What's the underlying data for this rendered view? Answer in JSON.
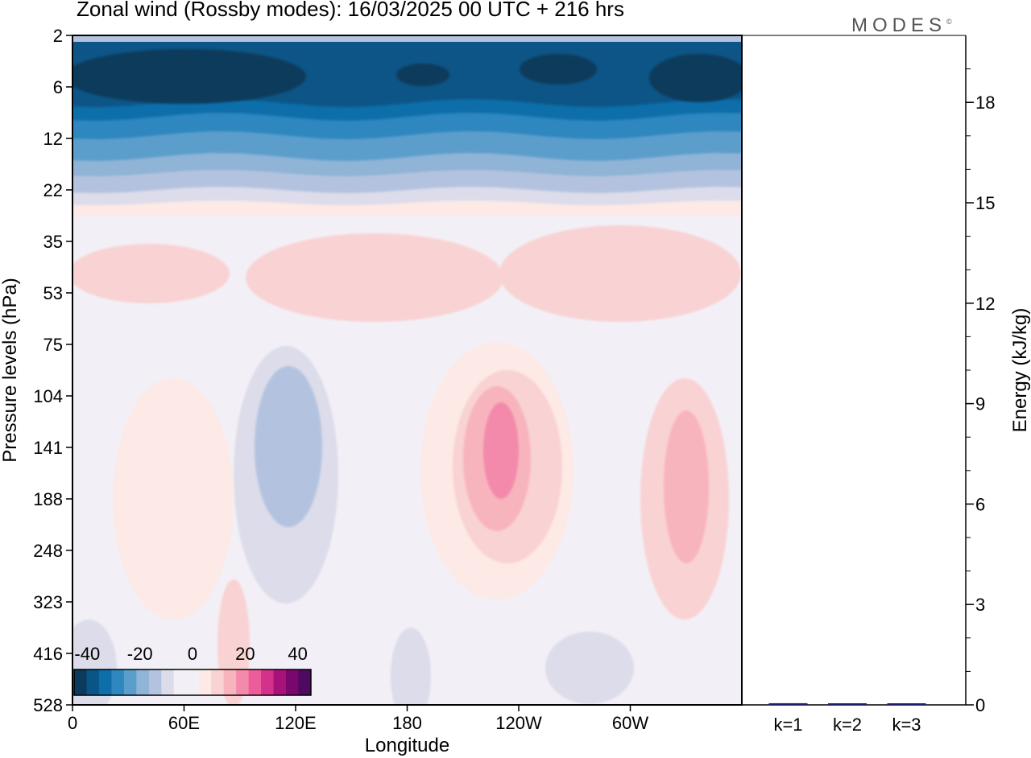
{
  "title": "Zonal wind (Rossby modes):  16/03/2025  00 UTC  + 216 hrs",
  "brand": "MODES",
  "brand_mark": "©",
  "colors": {
    "blues": [
      "#0b3a5c",
      "#0a5486",
      "#0e6eaa",
      "#2e87bf",
      "#5b9ecb",
      "#8fb4d6",
      "#b3c3df",
      "#dcdcea"
    ],
    "near_zero": "#f2f0f6",
    "reds": [
      "#fde9e5",
      "#f9d2d3",
      "#f8b4bd",
      "#f38aab",
      "#ec5d9a",
      "#d3318b",
      "#a8107a",
      "#7a076c",
      "#4d0a5e"
    ]
  },
  "chart_data": [
    {
      "type": "heatmap",
      "title": "Zonal wind (Rossby modes):  16/03/2025  00 UTC  + 216 hrs",
      "xlabel": "Longitude",
      "ylabel": "Pressure levels (hPa)",
      "x_ticks": [
        "0",
        "60E",
        "120E",
        "180",
        "120W",
        "60W"
      ],
      "x_tick_degrees": [
        0,
        60,
        120,
        180,
        240,
        300
      ],
      "xlim": [
        0,
        360
      ],
      "y_ticks": [
        "2",
        "6",
        "12",
        "22",
        "35",
        "53",
        "75",
        "104",
        "141",
        "188",
        "248",
        "323",
        "416",
        "528"
      ],
      "y_scale": "model levels, top 2 hPa to bottom 528 hPa",
      "colorbar": {
        "tick_labels": [
          "-40",
          "-20",
          "0",
          "20",
          "40"
        ],
        "tick_values": [
          -40,
          -20,
          0,
          20,
          40
        ],
        "range": [
          -45,
          45
        ],
        "step": 5
      },
      "grid": false,
      "regions": [
        {
          "level_range": [
            "2",
            "12"
          ],
          "lon_range": [
            0,
            360
          ],
          "value": "-40 to -20"
        },
        {
          "level_range": [
            "12",
            "22"
          ],
          "lon_range": [
            0,
            360
          ],
          "value": "-20 to -5"
        },
        {
          "level_range": [
            "35",
            "75"
          ],
          "lon_range": [
            0,
            360
          ],
          "value": "5 to 10"
        },
        {
          "level_range": [
            "104",
            "323"
          ],
          "lon_range": [
            95,
            135
          ],
          "value": "-10 to -5"
        },
        {
          "level_range": [
            "104",
            "248"
          ],
          "lon_range": [
            200,
            265
          ],
          "value": "10 to 20"
        },
        {
          "level_range": [
            "104",
            "248"
          ],
          "lon_range": [
            310,
            355
          ],
          "value": "10 to 15"
        },
        {
          "level_range": [
            "323",
            "528"
          ],
          "lon_range": [
            0,
            360
          ],
          "value": "-5 to 5"
        }
      ]
    },
    {
      "type": "bar",
      "ylabel": "Energy (kJ/kg)",
      "categories": [
        "k=1",
        "k=2",
        "k=3"
      ],
      "values": [
        0.05,
        0.02,
        0.01
      ],
      "ylim": [
        0,
        20
      ],
      "y_ticks": [
        0,
        3,
        6,
        9,
        12,
        15,
        18
      ],
      "bar_color": "#1f1f6e"
    }
  ]
}
